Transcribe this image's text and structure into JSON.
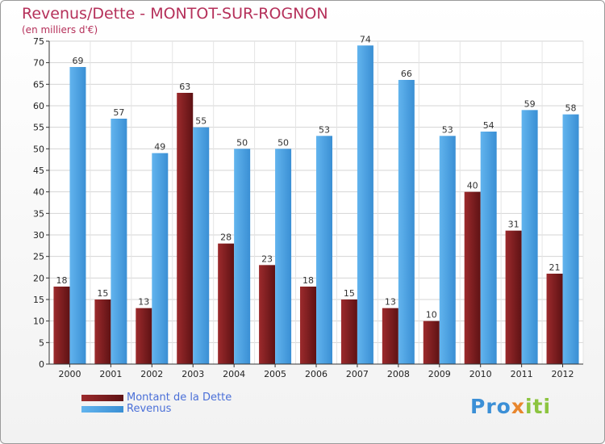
{
  "chart_data": {
    "type": "bar",
    "title": "Revenus/Dette - MONTOT-SUR-ROGNON",
    "subtitle": "(en milliers d'€)",
    "categories": [
      "2000",
      "2001",
      "2002",
      "2003",
      "2004",
      "2005",
      "2006",
      "2007",
      "2008",
      "2009",
      "2010",
      "2011",
      "2012"
    ],
    "series": [
      {
        "name": "Montant de la Dette",
        "color": "#7a1c1e",
        "values": [
          18,
          15,
          13,
          63,
          28,
          23,
          18,
          15,
          13,
          10,
          40,
          31,
          21
        ]
      },
      {
        "name": "Revenus",
        "color": "#4aa3e6",
        "values": [
          69,
          57,
          49,
          55,
          50,
          50,
          53,
          74,
          66,
          53,
          54,
          59,
          58
        ]
      }
    ],
    "ylim": [
      0,
      75
    ],
    "yticks": [
      0,
      5,
      10,
      15,
      20,
      25,
      30,
      35,
      40,
      45,
      50,
      55,
      60,
      65,
      70,
      75
    ],
    "grid": true,
    "legend": "bottom-left"
  },
  "legend": {
    "debt_label": "Montant de la Dette",
    "revenue_label": "Revenus"
  },
  "logo": {
    "part1": "Pro",
    "part2": "x",
    "part3": "iti"
  }
}
